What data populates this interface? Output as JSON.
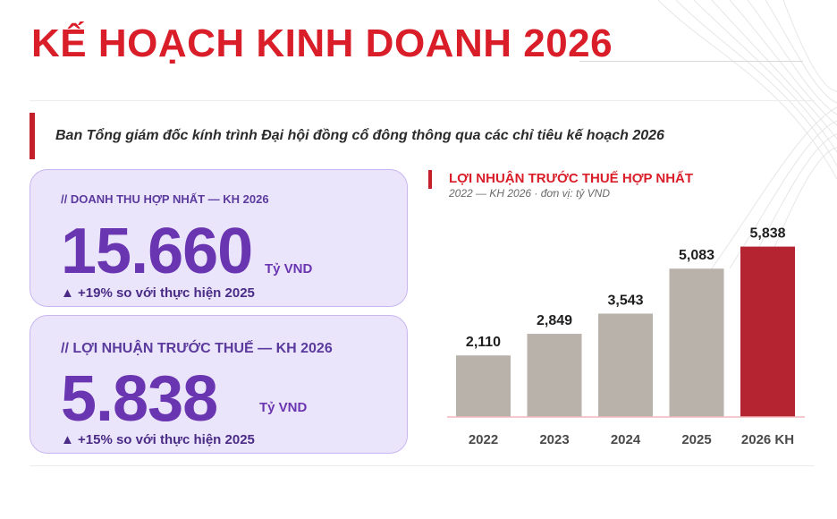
{
  "title": "KẾ HOẠCH KINH DOANH 2026",
  "subtitle": "Ban Tổng giám đốc kính trình Đại hội đồng cổ đông thông qua các chỉ tiêu kế hoạch 2026",
  "cards": [
    {
      "label": "// DOANH THU HỢP NHẤT — KH 2026",
      "value": "15.660",
      "unit": "Tỷ VND",
      "delta": "▲ +19% so với thực hiện 2025"
    },
    {
      "label": "// LỢI NHUẬN TRƯỚC THUẾ — KH 2026",
      "value": "5.838",
      "unit": "Tỷ VND",
      "delta": "▲ +15% so với thực hiện 2025"
    }
  ],
  "colors": {
    "accent": "#d91e2a",
    "bar": "#b8b2ab",
    "highlight": "#b52431",
    "purple": "#6a35b0"
  },
  "chart_data": {
    "type": "bar",
    "title": "LỢI NHUẬN TRƯỚC THUẾ HỢP NHẤT",
    "subtitle": "2022 — KH 2026 · đơn vị: tỷ VND",
    "categories": [
      "2022",
      "2023",
      "2024",
      "2025",
      "2026 KH"
    ],
    "values": [
      2110,
      2849,
      3543,
      5083,
      5838
    ],
    "value_labels": [
      "2,110",
      "2,849",
      "3,543",
      "5,083",
      "5,838"
    ],
    "highlight_index": 4,
    "ylim": [
      0,
      6500
    ],
    "grid": false
  }
}
